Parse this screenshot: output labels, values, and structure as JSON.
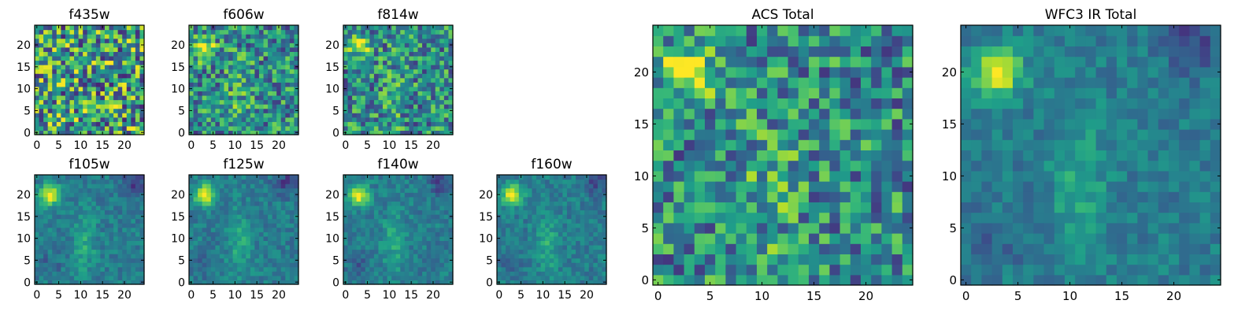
{
  "chart_data": [
    {
      "type": "heatmap",
      "title": "f435w",
      "colormap": "viridis",
      "x_range": [
        0,
        24
      ],
      "y_range": [
        0,
        24
      ],
      "x_ticks": [
        0,
        5,
        10,
        15,
        20
      ],
      "y_ticks": [
        0,
        5,
        10,
        15,
        20
      ],
      "bright_spot": null,
      "texture": "noise"
    },
    {
      "type": "heatmap",
      "title": "f606w",
      "colormap": "viridis",
      "x_range": [
        0,
        24
      ],
      "y_range": [
        0,
        24
      ],
      "x_ticks": [
        0,
        5,
        10,
        15,
        20
      ],
      "y_ticks": [
        0,
        5,
        10,
        15,
        20
      ],
      "bright_spot": [
        3,
        19
      ],
      "texture": "noisy"
    },
    {
      "type": "heatmap",
      "title": "f814w",
      "colormap": "viridis",
      "x_range": [
        0,
        24
      ],
      "y_range": [
        0,
        24
      ],
      "x_ticks": [
        0,
        5,
        10,
        15,
        20
      ],
      "y_ticks": [
        0,
        5,
        10,
        15,
        20
      ],
      "bright_spot": [
        3,
        20
      ],
      "texture": "noisy"
    },
    {
      "type": "heatmap",
      "title": "f105w",
      "colormap": "viridis",
      "x_range": [
        0,
        24
      ],
      "y_range": [
        0,
        24
      ],
      "x_ticks": [
        0,
        5,
        10,
        15,
        20
      ],
      "y_ticks": [
        0,
        5,
        10,
        15,
        20
      ],
      "bright_spot": [
        3,
        20
      ],
      "texture": "smooth"
    },
    {
      "type": "heatmap",
      "title": "f125w",
      "colormap": "viridis",
      "x_range": [
        0,
        24
      ],
      "y_range": [
        0,
        24
      ],
      "x_ticks": [
        0,
        5,
        10,
        15,
        20
      ],
      "y_ticks": [
        0,
        5,
        10,
        15,
        20
      ],
      "bright_spot": [
        3,
        20
      ],
      "texture": "smooth"
    },
    {
      "type": "heatmap",
      "title": "f140w",
      "colormap": "viridis",
      "x_range": [
        0,
        24
      ],
      "y_range": [
        0,
        24
      ],
      "x_ticks": [
        0,
        5,
        10,
        15,
        20
      ],
      "y_ticks": [
        0,
        5,
        10,
        15,
        20
      ],
      "bright_spot": [
        3,
        20
      ],
      "texture": "smooth"
    },
    {
      "type": "heatmap",
      "title": "f160w",
      "colormap": "viridis",
      "x_range": [
        0,
        24
      ],
      "y_range": [
        0,
        24
      ],
      "x_ticks": [
        0,
        5,
        10,
        15,
        20
      ],
      "y_ticks": [
        0,
        5,
        10,
        15,
        20
      ],
      "bright_spot": [
        3,
        20
      ],
      "texture": "smooth"
    },
    {
      "type": "heatmap",
      "title": "ACS Total",
      "colormap": "viridis",
      "x_range": [
        0,
        24
      ],
      "y_range": [
        0,
        24
      ],
      "x_ticks": [
        0,
        5,
        10,
        15,
        20
      ],
      "y_ticks": [
        0,
        5,
        10,
        15,
        20
      ],
      "bright_spot": [
        3,
        20
      ],
      "texture": "noisy"
    },
    {
      "type": "heatmap",
      "title": "WFC3 IR Total",
      "colormap": "viridis",
      "x_range": [
        0,
        24
      ],
      "y_range": [
        0,
        24
      ],
      "x_ticks": [
        0,
        5,
        10,
        15,
        20
      ],
      "y_ticks": [
        0,
        5,
        10,
        15,
        20
      ],
      "bright_spot": [
        3,
        20
      ],
      "texture": "smooth"
    }
  ]
}
